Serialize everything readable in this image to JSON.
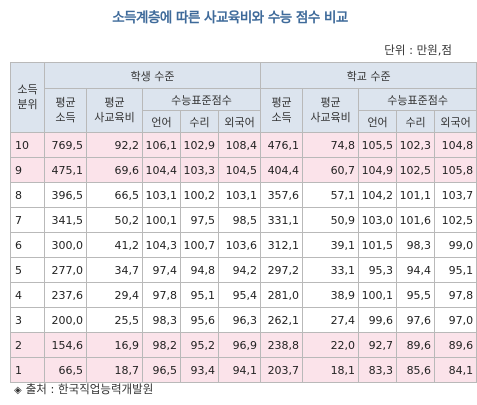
{
  "title": "소득계층에 따른 사교육비와 수능 점수 비교",
  "unit": "단위 : 만원,점",
  "headers": {
    "rank": "소득\n분위",
    "student_group": "학생 수준",
    "school_group": "학교 수준",
    "avg_income": "평균\n소득",
    "avg_tutoring": "평균\n사교육비",
    "csat_score": "수능표준점수",
    "subjects": [
      "언어",
      "수리",
      "외국어"
    ]
  },
  "rows": [
    {
      "rank": "10",
      "s_income": "769,5",
      "s_tutor": "92,2",
      "s_kor": "106,1",
      "s_math": "102,9",
      "s_eng": "108,4",
      "c_income": "476,1",
      "c_tutor": "74,8",
      "c_kor": "105,5",
      "c_math": "102,3",
      "c_eng": "104,8",
      "highlight": true
    },
    {
      "rank": "9",
      "s_income": "475,1",
      "s_tutor": "69,6",
      "s_kor": "104,4",
      "s_math": "103,3",
      "s_eng": "104,5",
      "c_income": "404,4",
      "c_tutor": "60,7",
      "c_kor": "104,9",
      "c_math": "102,5",
      "c_eng": "105,8",
      "highlight": true
    },
    {
      "rank": "8",
      "s_income": "396,5",
      "s_tutor": "66,5",
      "s_kor": "103,1",
      "s_math": "100,2",
      "s_eng": "103,1",
      "c_income": "357,6",
      "c_tutor": "57,1",
      "c_kor": "104,2",
      "c_math": "101,1",
      "c_eng": "103,7",
      "highlight": false
    },
    {
      "rank": "7",
      "s_income": "341,5",
      "s_tutor": "50,2",
      "s_kor": "100,1",
      "s_math": "97,5",
      "s_eng": "98,5",
      "c_income": "331,1",
      "c_tutor": "50,9",
      "c_kor": "103,0",
      "c_math": "101,6",
      "c_eng": "102,5",
      "highlight": false
    },
    {
      "rank": "6",
      "s_income": "300,0",
      "s_tutor": "41,2",
      "s_kor": "104,3",
      "s_math": "100,7",
      "s_eng": "103,6",
      "c_income": "312,1",
      "c_tutor": "39,1",
      "c_kor": "101,5",
      "c_math": "98,3",
      "c_eng": "99,0",
      "highlight": false
    },
    {
      "rank": "5",
      "s_income": "277,0",
      "s_tutor": "34,7",
      "s_kor": "97,4",
      "s_math": "94,8",
      "s_eng": "94,2",
      "c_income": "297,2",
      "c_tutor": "33,1",
      "c_kor": "95,3",
      "c_math": "94,4",
      "c_eng": "95,1",
      "highlight": false
    },
    {
      "rank": "4",
      "s_income": "237,6",
      "s_tutor": "29,4",
      "s_kor": "97,8",
      "s_math": "95,1",
      "s_eng": "95,4",
      "c_income": "281,0",
      "c_tutor": "38,9",
      "c_kor": "100,1",
      "c_math": "95,5",
      "c_eng": "97,8",
      "highlight": false
    },
    {
      "rank": "3",
      "s_income": "200,0",
      "s_tutor": "25,5",
      "s_kor": "98,3",
      "s_math": "95,6",
      "s_eng": "96,3",
      "c_income": "262,1",
      "c_tutor": "27,4",
      "c_kor": "99,6",
      "c_math": "97,6",
      "c_eng": "97,0",
      "highlight": false
    },
    {
      "rank": "2",
      "s_income": "154,6",
      "s_tutor": "16,9",
      "s_kor": "98,2",
      "s_math": "95,2",
      "s_eng": "96,9",
      "c_income": "238,8",
      "c_tutor": "22,0",
      "c_kor": "92,7",
      "c_math": "89,6",
      "c_eng": "89,6",
      "highlight": true
    },
    {
      "rank": "1",
      "s_income": "66,5",
      "s_tutor": "18,7",
      "s_kor": "96,5",
      "s_math": "93,4",
      "s_eng": "94,1",
      "c_income": "203,7",
      "c_tutor": "18,1",
      "c_kor": "83,3",
      "c_math": "85,6",
      "c_eng": "84,1",
      "highlight": true
    }
  ],
  "source": {
    "mark": "◈",
    "text": "출처 : 한국직업능력개발원"
  },
  "colors": {
    "title": "#3e6a9a",
    "header_bg": "#dce4ee",
    "highlight_row": "#fbe3ea",
    "border": "#b9b9b9"
  }
}
